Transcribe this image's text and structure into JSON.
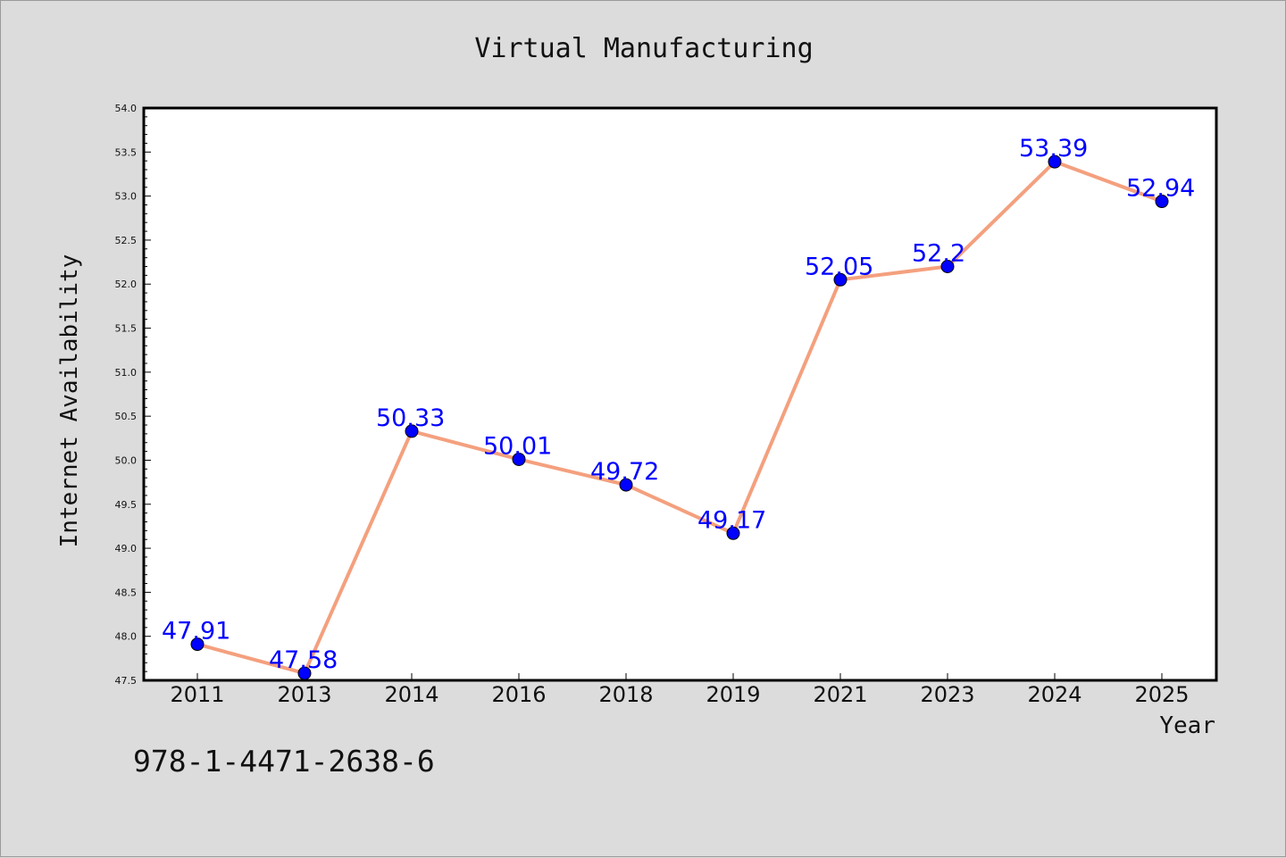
{
  "chart_data": {
    "type": "line",
    "title": "Virtual Manufacturing",
    "xlabel": "Year",
    "ylabel": "Internet Availability",
    "categories": [
      "2011",
      "2013",
      "2014",
      "2016",
      "2018",
      "2019",
      "2021",
      "2023",
      "2024",
      "2025"
    ],
    "series": [
      {
        "values": [
          47.91,
          47.58,
          50.33,
          50.01,
          49.72,
          49.17,
          52.05,
          52.2,
          53.39,
          52.94
        ],
        "data_labels": [
          "47.91",
          "47.58",
          "50.33",
          "50.01",
          "49.72",
          "49.17",
          "52.05",
          "52.2",
          "53.39",
          "52.94"
        ],
        "line_color": "#f4a07e",
        "marker_color": "#0000ff"
      }
    ],
    "ylim": [
      47.5,
      54.0
    ],
    "y_ticks": [
      "47.5",
      "48.0",
      "48.5",
      "49.0",
      "49.5",
      "50.0",
      "50.5",
      "51.0",
      "51.5",
      "52.0",
      "52.5",
      "53.0",
      "53.5",
      "54.0"
    ],
    "grid": false,
    "label_color": "#0000ff"
  },
  "footer": {
    "isbn": "978-1-4471-2638-6"
  }
}
